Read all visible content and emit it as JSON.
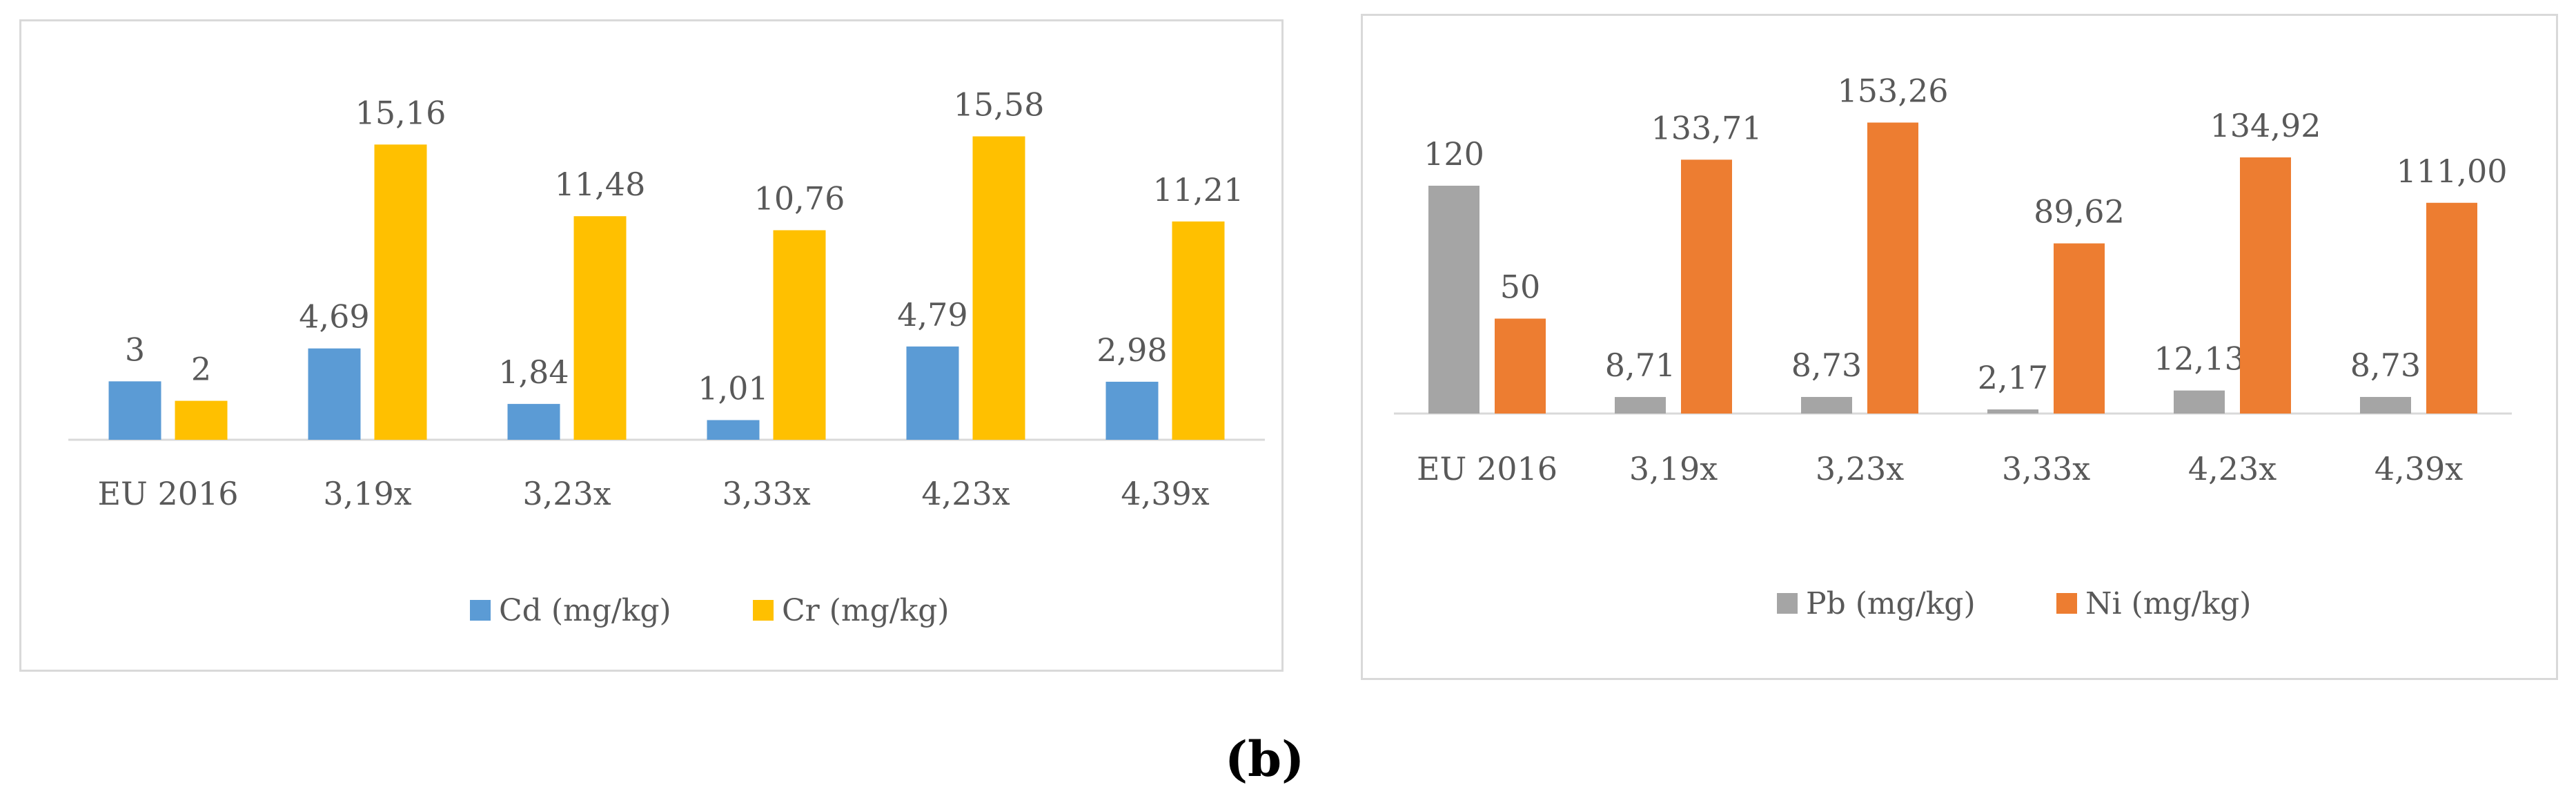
{
  "caption": "(b)",
  "chart_data": [
    {
      "type": "bar",
      "categories": [
        "EU 2016",
        "3,19x",
        "3,23x",
        "3,33x",
        "4,23x",
        "4,39x"
      ],
      "series": [
        {
          "name": "Cd (mg/kg)",
          "color": "#5b9bd5",
          "values": [
            3,
            4.69,
            1.84,
            1.01,
            4.79,
            2.98
          ],
          "labels": [
            "3",
            "4,69",
            "1,84",
            "1,01",
            "4,79",
            "2,98"
          ]
        },
        {
          "name": "Cr (mg/kg)",
          "color": "#ffc000",
          "values": [
            2,
            15.16,
            11.48,
            10.76,
            15.58,
            11.21
          ],
          "labels": [
            "2",
            "15,16",
            "11,48",
            "10,76",
            "15,58",
            "11,21"
          ]
        }
      ],
      "ylim": [
        0,
        17.3
      ],
      "title": "",
      "xlabel": "",
      "ylabel": "",
      "legend": "bottom"
    },
    {
      "type": "bar",
      "categories": [
        "EU 2016",
        "3,19x",
        "3,23x",
        "3,33x",
        "4,23x",
        "4,39x"
      ],
      "series": [
        {
          "name": "Pb (mg/kg)",
          "color": "#a5a5a5",
          "values": [
            120,
            8.71,
            8.73,
            2.17,
            12.13,
            8.73
          ],
          "labels": [
            "120",
            "8,71",
            "8,73",
            "2,17",
            "12,13",
            "8,73"
          ]
        },
        {
          "name": "Ni (mg/kg)",
          "color": "#ed7d31",
          "values": [
            50,
            133.71,
            153.26,
            89.62,
            134.92,
            111.0
          ],
          "labels": [
            "50",
            "133,71",
            "153,26",
            "89,62",
            "134,92",
            "111,00"
          ]
        }
      ],
      "ylim": [
        0,
        160
      ],
      "title": "",
      "xlabel": "",
      "ylabel": "",
      "legend": "bottom"
    }
  ]
}
